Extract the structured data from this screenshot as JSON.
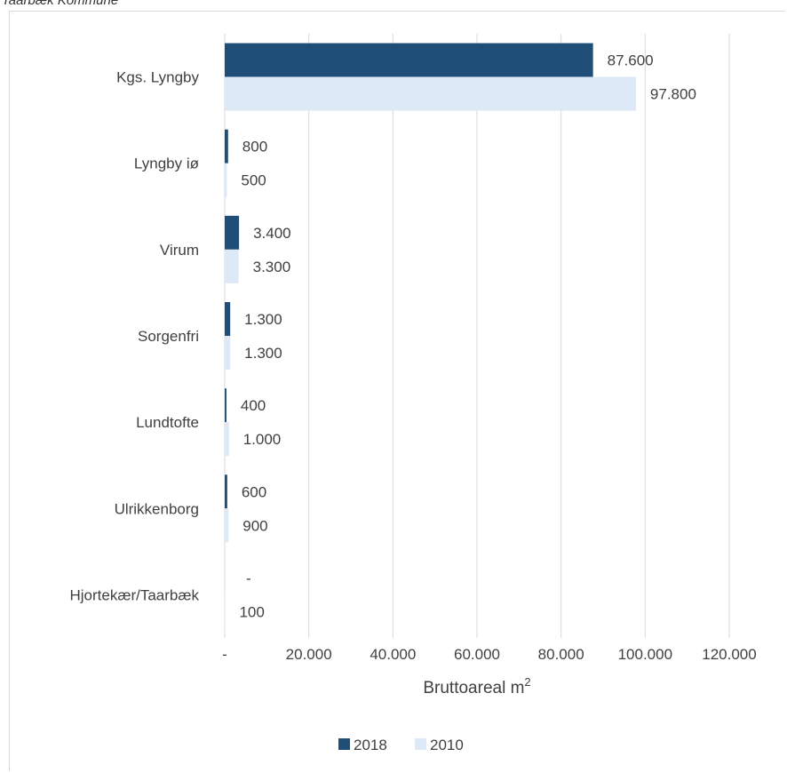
{
  "caption": "Taarbæk Kommune",
  "colors": {
    "series2018": "#1f4e79",
    "series2010": "#dde9f7",
    "grid": "#d9d9d9",
    "text": "#404040"
  },
  "chart_data": {
    "type": "bar",
    "orientation": "horizontal",
    "categories": [
      "Kgs. Lyngby",
      "Lyngby iø",
      "Virum",
      "Sorgenfri",
      "Lundtofte",
      "Ulrikkenborg",
      "Hjortekær/Taarbæk"
    ],
    "series": [
      {
        "name": "2018",
        "values": [
          87600,
          800,
          3400,
          1300,
          400,
          600,
          0
        ],
        "labels": [
          "87.600",
          "800",
          "3.400",
          "1.300",
          "400",
          "600",
          "-"
        ]
      },
      {
        "name": "2010",
        "values": [
          97800,
          500,
          3300,
          1300,
          1000,
          900,
          100
        ],
        "labels": [
          "97.800",
          "500",
          "3.300",
          "1.300",
          "1.000",
          "900",
          "100"
        ]
      }
    ],
    "xlim": [
      0,
      120000
    ],
    "xticks": [
      0,
      20000,
      40000,
      60000,
      80000,
      100000,
      120000
    ],
    "xtick_labels": [
      "-",
      "20.000",
      "40.000",
      "60.000",
      "80.000",
      "100.000",
      "120.000"
    ],
    "xlabel": "Bruttoareal m",
    "xlabel_sup": "2",
    "grid": true,
    "legend": "bottom"
  }
}
